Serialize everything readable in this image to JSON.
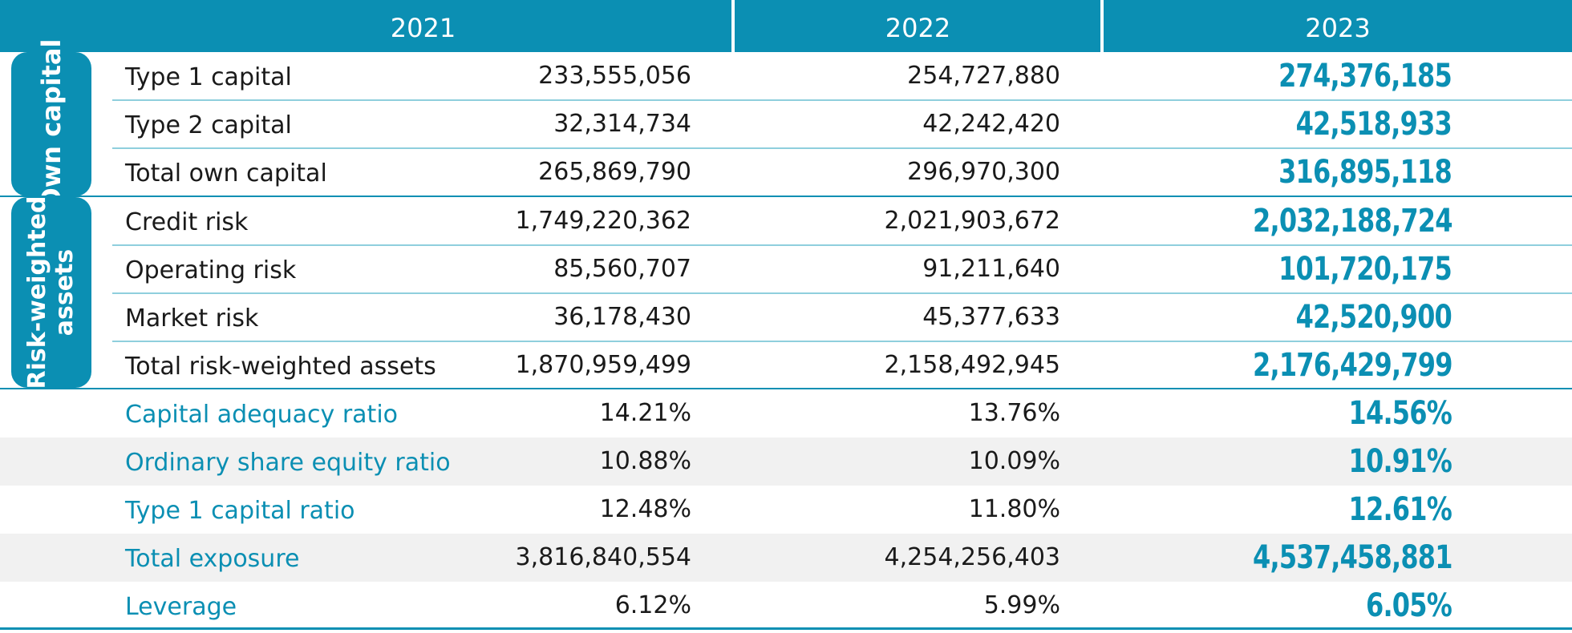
{
  "header": {
    "years": [
      "2021",
      "2022",
      "2023"
    ]
  },
  "groups": {
    "own_capital": "Own capital",
    "rwa_line1": "Risk-weighted",
    "rwa_line2": "assets"
  },
  "rows": [
    {
      "label": "Type 1 capital",
      "v2021": "233,555,056",
      "v2022": "254,727,880",
      "v2023": "274,376,185"
    },
    {
      "label": "Type 2 capital",
      "v2021": "32,314,734",
      "v2022": "42,242,420",
      "v2023": "42,518,933"
    },
    {
      "label": "Total own capital",
      "v2021": "265,869,790",
      "v2022": "296,970,300",
      "v2023": "316,895,118"
    },
    {
      "label": "Credit risk",
      "v2021": "1,749,220,362",
      "v2022": "2,021,903,672",
      "v2023": "2,032,188,724"
    },
    {
      "label": "Operating risk",
      "v2021": "85,560,707",
      "v2022": "91,211,640",
      "v2023": "101,720,175"
    },
    {
      "label": "Market risk",
      "v2021": "36,178,430",
      "v2022": "45,377,633",
      "v2023": "42,520,900"
    },
    {
      "label": "Total risk-weighted assets",
      "v2021": "1,870,959,499",
      "v2022": "2,158,492,945",
      "v2023": "2,176,429,799"
    },
    {
      "label": "Capital adequacy ratio",
      "v2021": "14.21%",
      "v2022": "13.76%",
      "v2023": "14.56%"
    },
    {
      "label": "Ordinary share equity ratio",
      "v2021": "10.88%",
      "v2022": "10.09%",
      "v2023": "10.91%"
    },
    {
      "label": "Type 1 capital ratio",
      "v2021": "12.48%",
      "v2022": "11.80%",
      "v2023": "12.61%"
    },
    {
      "label": "Total exposure",
      "v2021": "3,816,840,554",
      "v2022": "4,254,256,403",
      "v2023": "4,537,458,881"
    },
    {
      "label": "Leverage",
      "v2021": "6.12%",
      "v2022": "5.99%",
      "v2023": "6.05%"
    }
  ],
  "colors": {
    "accent": "#0b8fb3",
    "light_rule": "#8fcfdd",
    "stripe": "#f1f1f1"
  }
}
